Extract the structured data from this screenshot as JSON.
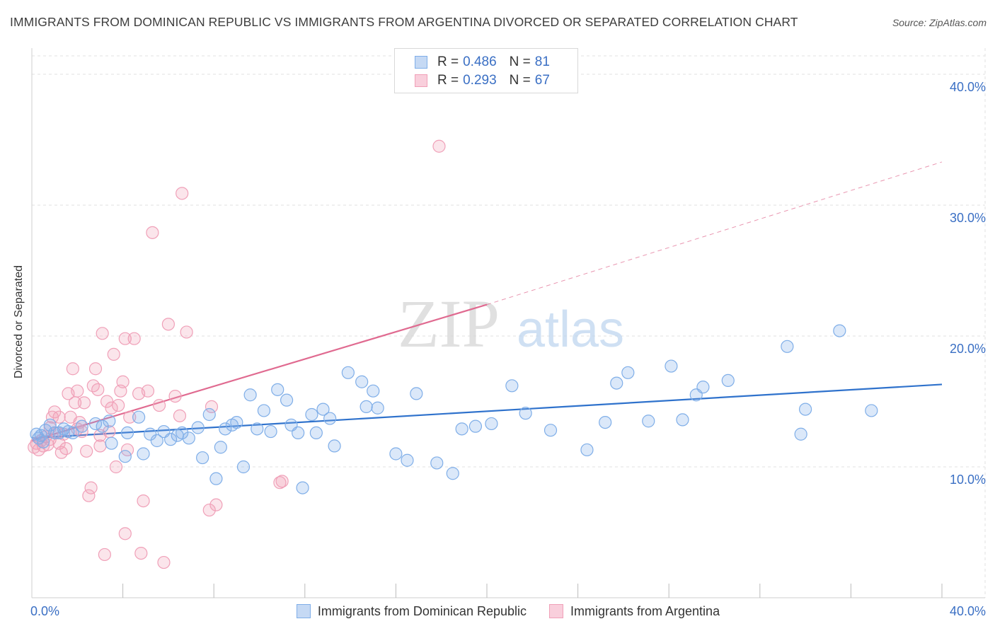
{
  "title": "IMMIGRANTS FROM DOMINICAN REPUBLIC VS IMMIGRANTS FROM ARGENTINA DIVORCED OR SEPARATED CORRELATION CHART",
  "source": "Source: ZipAtlas.com",
  "watermark": {
    "zip": "ZIP",
    "atlas": "atlas"
  },
  "legend": {
    "rows": [
      {
        "r_label": "R =",
        "r_value": "0.486",
        "n_label": "N =",
        "n_value": "81",
        "color": "#7faee8"
      },
      {
        "r_label": "R =",
        "r_value": "0.293",
        "n_label": "N =",
        "n_value": "67",
        "color": "#f0a0b8"
      }
    ]
  },
  "chart_data": {
    "type": "scatter",
    "title": "IMMIGRANTS FROM DOMINICAN REPUBLIC VS IMMIGRANTS FROM ARGENTINA DIVORCED OR SEPARATED CORRELATION CHART",
    "xlabel": "",
    "ylabel": "Divorced or Separated",
    "xlim": [
      0,
      40
    ],
    "ylim": [
      0,
      42
    ],
    "x_tick_labels": [
      "0.0%",
      "40.0%"
    ],
    "y_ticks": [
      10,
      20,
      30,
      40
    ],
    "y_tick_labels": [
      "10.0%",
      "20.0%",
      "30.0%",
      "40.0%"
    ],
    "grid": true,
    "legend_position": "top-center",
    "series": [
      {
        "name": "Immigrants from Dominican Republic",
        "color": "#7faee8",
        "line_color": "#2f72cc",
        "trend": {
          "x": [
            0,
            40
          ],
          "y": [
            12.2,
            16.3
          ]
        },
        "points": [
          [
            0.2,
            12.5
          ],
          [
            0.3,
            12.2
          ],
          [
            0.4,
            12.4
          ],
          [
            0.6,
            12.8
          ],
          [
            0.8,
            13.2
          ],
          [
            1.0,
            12.6
          ],
          [
            1.2,
            12.6
          ],
          [
            1.4,
            12.9
          ],
          [
            1.6,
            12.7
          ],
          [
            1.8,
            12.6
          ],
          [
            2.2,
            13.1
          ],
          [
            2.8,
            13.3
          ],
          [
            3.1,
            13.1
          ],
          [
            3.4,
            13.5
          ],
          [
            3.5,
            11.8
          ],
          [
            4.1,
            10.8
          ],
          [
            4.2,
            12.6
          ],
          [
            4.7,
            13.8
          ],
          [
            4.9,
            11.0
          ],
          [
            5.2,
            12.5
          ],
          [
            5.5,
            12.0
          ],
          [
            5.8,
            12.7
          ],
          [
            6.1,
            12.1
          ],
          [
            6.4,
            12.4
          ],
          [
            6.6,
            12.6
          ],
          [
            6.9,
            12.2
          ],
          [
            7.3,
            13.0
          ],
          [
            7.5,
            10.7
          ],
          [
            7.8,
            14.0
          ],
          [
            8.1,
            9.1
          ],
          [
            8.3,
            11.5
          ],
          [
            8.5,
            12.9
          ],
          [
            8.8,
            13.2
          ],
          [
            9.0,
            13.4
          ],
          [
            9.3,
            10.0
          ],
          [
            9.6,
            15.5
          ],
          [
            9.9,
            12.9
          ],
          [
            10.2,
            14.3
          ],
          [
            10.5,
            12.7
          ],
          [
            10.8,
            15.9
          ],
          [
            11.2,
            15.1
          ],
          [
            11.4,
            13.2
          ],
          [
            11.7,
            12.6
          ],
          [
            11.9,
            8.4
          ],
          [
            12.3,
            14.0
          ],
          [
            12.5,
            12.6
          ],
          [
            12.8,
            14.4
          ],
          [
            13.1,
            13.7
          ],
          [
            13.3,
            11.6
          ],
          [
            13.9,
            17.2
          ],
          [
            14.5,
            16.5
          ],
          [
            14.7,
            14.6
          ],
          [
            15.0,
            15.8
          ],
          [
            15.2,
            14.5
          ],
          [
            16.0,
            11.0
          ],
          [
            16.5,
            10.5
          ],
          [
            16.9,
            15.6
          ],
          [
            17.8,
            10.3
          ],
          [
            18.5,
            9.5
          ],
          [
            18.9,
            12.9
          ],
          [
            19.5,
            13.1
          ],
          [
            20.2,
            13.3
          ],
          [
            21.1,
            16.2
          ],
          [
            21.7,
            14.1
          ],
          [
            22.8,
            12.8
          ],
          [
            24.4,
            11.3
          ],
          [
            25.2,
            13.4
          ],
          [
            25.7,
            16.4
          ],
          [
            26.2,
            17.2
          ],
          [
            27.1,
            13.5
          ],
          [
            28.1,
            17.7
          ],
          [
            28.6,
            13.6
          ],
          [
            29.2,
            15.5
          ],
          [
            29.5,
            16.1
          ],
          [
            30.6,
            16.6
          ],
          [
            33.2,
            19.2
          ],
          [
            33.8,
            12.5
          ],
          [
            34.0,
            14.4
          ],
          [
            35.5,
            20.4
          ],
          [
            36.9,
            14.3
          ],
          [
            0.5,
            11.9
          ]
        ]
      },
      {
        "name": "Immigrants from Argentina",
        "color": "#f0a0b8",
        "line_color": "#e06a90",
        "trend": {
          "x": [
            0,
            20
          ],
          "y": [
            12.0,
            22.4
          ]
        },
        "trend_extension": {
          "x": [
            20,
            40
          ],
          "y": [
            22.4,
            33.3
          ]
        },
        "points": [
          [
            0.1,
            11.5
          ],
          [
            0.2,
            11.8
          ],
          [
            0.3,
            11.3
          ],
          [
            0.4,
            12.0
          ],
          [
            0.5,
            11.6
          ],
          [
            0.6,
            12.3
          ],
          [
            0.7,
            11.7
          ],
          [
            0.8,
            13.0
          ],
          [
            0.9,
            13.8
          ],
          [
            1.0,
            14.2
          ],
          [
            1.1,
            12.6
          ],
          [
            1.2,
            13.8
          ],
          [
            1.3,
            11.1
          ],
          [
            1.4,
            12.5
          ],
          [
            1.5,
            11.4
          ],
          [
            1.6,
            15.6
          ],
          [
            1.7,
            13.8
          ],
          [
            1.8,
            17.5
          ],
          [
            1.9,
            14.9
          ],
          [
            2.0,
            15.8
          ],
          [
            2.1,
            13.4
          ],
          [
            2.2,
            12.7
          ],
          [
            2.3,
            14.9
          ],
          [
            2.4,
            11.2
          ],
          [
            2.5,
            7.8
          ],
          [
            2.6,
            8.4
          ],
          [
            2.7,
            16.2
          ],
          [
            2.8,
            17.5
          ],
          [
            2.9,
            15.9
          ],
          [
            3.0,
            11.6
          ],
          [
            3.1,
            20.2
          ],
          [
            3.2,
            3.3
          ],
          [
            3.3,
            15.0
          ],
          [
            3.4,
            12.7
          ],
          [
            3.5,
            14.5
          ],
          [
            3.6,
            18.6
          ],
          [
            3.7,
            10.0
          ],
          [
            3.8,
            14.7
          ],
          [
            3.9,
            15.8
          ],
          [
            4.0,
            16.5
          ],
          [
            4.1,
            19.8
          ],
          [
            4.2,
            11.3
          ],
          [
            4.3,
            13.8
          ],
          [
            4.5,
            19.8
          ],
          [
            4.7,
            15.6
          ],
          [
            4.9,
            7.4
          ],
          [
            5.1,
            15.8
          ],
          [
            5.3,
            27.9
          ],
          [
            5.6,
            14.7
          ],
          [
            5.8,
            2.7
          ],
          [
            6.0,
            20.9
          ],
          [
            6.3,
            15.4
          ],
          [
            6.5,
            13.9
          ],
          [
            6.8,
            20.3
          ],
          [
            6.6,
            30.9
          ],
          [
            7.8,
            6.7
          ],
          [
            7.9,
            14.6
          ],
          [
            8.1,
            7.1
          ],
          [
            11.0,
            8.9
          ],
          [
            10.9,
            8.8
          ],
          [
            17.9,
            34.5
          ],
          [
            4.8,
            3.4
          ],
          [
            4.1,
            4.9
          ],
          [
            3.0,
            12.4
          ],
          [
            2.0,
            12.9
          ],
          [
            1.2,
            11.8
          ],
          [
            0.8,
            12.1
          ]
        ]
      }
    ]
  }
}
